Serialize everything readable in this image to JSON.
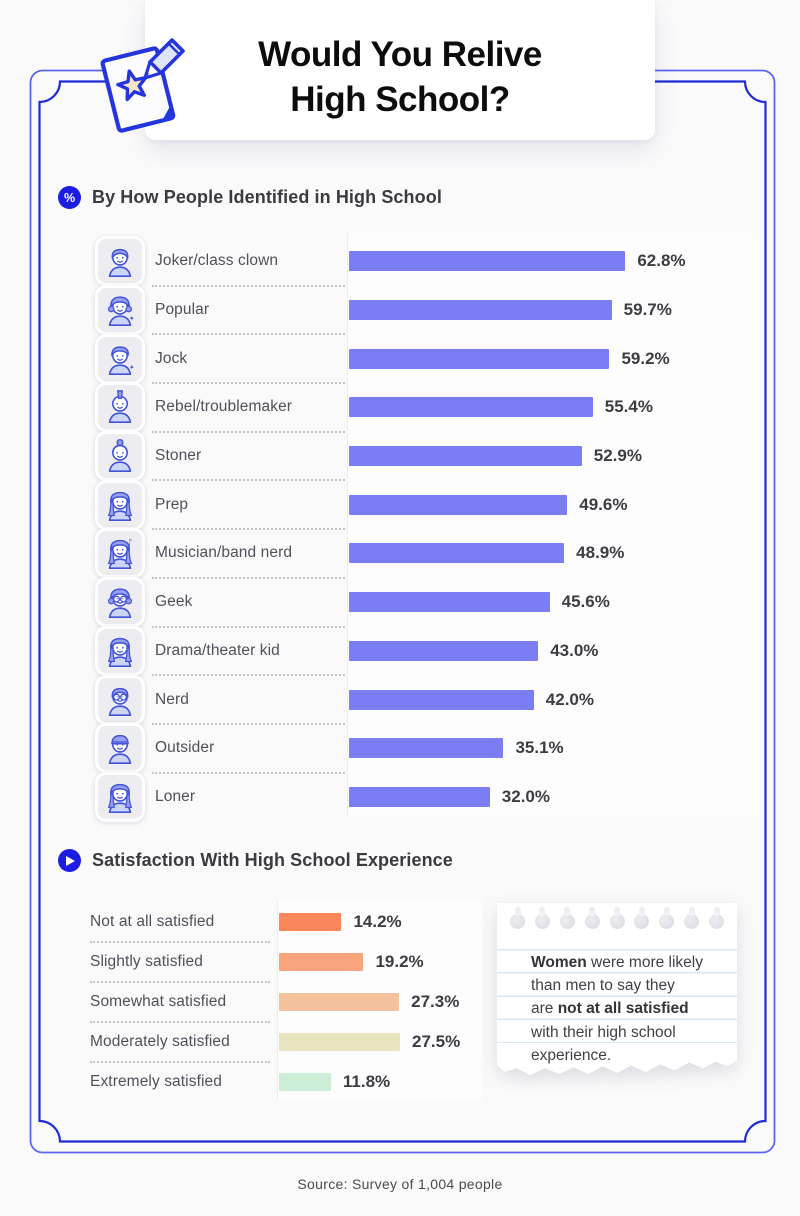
{
  "page": {
    "background": "#fafafb",
    "source_note": "Source: Survey of 1,004 people"
  },
  "header": {
    "title_lines": [
      "Would You Relive",
      "High School?"
    ],
    "doc_icon": "paper-star-pencil-icon"
  },
  "frame": {
    "outer_color": "#5b66f0",
    "inner_color": "#1e2ad4"
  },
  "section1": {
    "badge_icon": "percent-badge-icon",
    "badge_text": "%",
    "heading": "By How People Identified in High School",
    "bar_color": "#7b7df2",
    "rows": [
      {
        "icon": "joker-avatar-icon",
        "label": "Joker/class clown",
        "value": 62.8,
        "display": "62.8%"
      },
      {
        "icon": "popular-avatar-icon",
        "label": "Popular",
        "value": 59.7,
        "display": "59.7%"
      },
      {
        "icon": "jock-avatar-icon",
        "label": "Jock",
        "value": 59.2,
        "display": "59.2%"
      },
      {
        "icon": "rebel-avatar-icon",
        "label": "Rebel/troublemaker",
        "value": 55.4,
        "display": "55.4%"
      },
      {
        "icon": "stoner-avatar-icon",
        "label": "Stoner",
        "value": 52.9,
        "display": "52.9%"
      },
      {
        "icon": "prep-avatar-icon",
        "label": "Prep",
        "value": 49.6,
        "display": "49.6%"
      },
      {
        "icon": "musician-avatar-icon",
        "label": "Musician/band nerd",
        "value": 48.9,
        "display": "48.9%"
      },
      {
        "icon": "geek-avatar-icon",
        "label": "Geek",
        "value": 45.6,
        "display": "45.6%"
      },
      {
        "icon": "drama-avatar-icon",
        "label": "Drama/theater kid",
        "value": 43.0,
        "display": "43.0%"
      },
      {
        "icon": "nerd-avatar-icon",
        "label": "Nerd",
        "value": 42.0,
        "display": "42.0%"
      },
      {
        "icon": "outsider-avatar-icon",
        "label": "Outsider",
        "value": 35.1,
        "display": "35.1%"
      },
      {
        "icon": "loner-avatar-icon",
        "label": "Loner",
        "value": 32.0,
        "display": "32.0%"
      }
    ]
  },
  "section2": {
    "badge_icon": "play-badge-icon",
    "heading": "Satisfaction With High School Experience",
    "rows": [
      {
        "label": "Not at all satisfied",
        "value": 14.2,
        "display": "14.2%",
        "color": "#f8875c"
      },
      {
        "label": "Slightly satisfied",
        "value": 19.2,
        "display": "19.2%",
        "color": "#f9a47c"
      },
      {
        "label": "Somewhat satisfied",
        "value": 27.3,
        "display": "27.3%",
        "color": "#f3c29c"
      },
      {
        "label": "Moderately satisfied",
        "value": 27.5,
        "display": "27.5%",
        "color": "#e9e4c0"
      },
      {
        "label": "Extremely satisfied",
        "value": 11.8,
        "display": "11.8%",
        "color": "#cdeed6"
      }
    ]
  },
  "note_card": {
    "icon": "torn-notebook-paper",
    "lines": [
      [
        {
          "t": "Women",
          "b": true
        },
        {
          "t": " were more likely",
          "b": false
        }
      ],
      [
        {
          "t": "than men to say they",
          "b": false
        }
      ],
      [
        {
          "t": "are ",
          "b": false
        },
        {
          "t": "not at all satisfied",
          "b": true
        }
      ],
      [
        {
          "t": "with their high school",
          "b": false
        }
      ],
      [
        {
          "t": "experience.",
          "b": false
        }
      ]
    ]
  },
  "chart_data": [
    {
      "type": "bar",
      "orientation": "horizontal",
      "title": "By How People Identified in High School",
      "categories": [
        "Joker/class clown",
        "Popular",
        "Jock",
        "Rebel/troublemaker",
        "Stoner",
        "Prep",
        "Musician/band nerd",
        "Geek",
        "Drama/theater kid",
        "Nerd",
        "Outsider",
        "Loner"
      ],
      "values": [
        62.8,
        59.7,
        59.2,
        55.4,
        52.9,
        49.6,
        48.9,
        45.6,
        43.0,
        42.0,
        35.1,
        32.0
      ],
      "unit": "%",
      "xlim": [
        0,
        70
      ],
      "bar_color": "#7b7df2",
      "value_labels": true,
      "grid": false,
      "legend": false
    },
    {
      "type": "bar",
      "orientation": "horizontal",
      "title": "Satisfaction With High School Experience",
      "categories": [
        "Not at all satisfied",
        "Slightly satisfied",
        "Somewhat satisfied",
        "Moderately satisfied",
        "Extremely satisfied"
      ],
      "values": [
        14.2,
        19.2,
        27.3,
        27.5,
        11.8
      ],
      "unit": "%",
      "xlim": [
        0,
        30
      ],
      "bar_colors": [
        "#f8875c",
        "#f9a47c",
        "#f3c29c",
        "#e9e4c0",
        "#cdeed6"
      ],
      "value_labels": true,
      "grid": false,
      "legend": false,
      "annotation": "Women were more likely than men to say they are not at all satisfied with their high school experience."
    }
  ]
}
